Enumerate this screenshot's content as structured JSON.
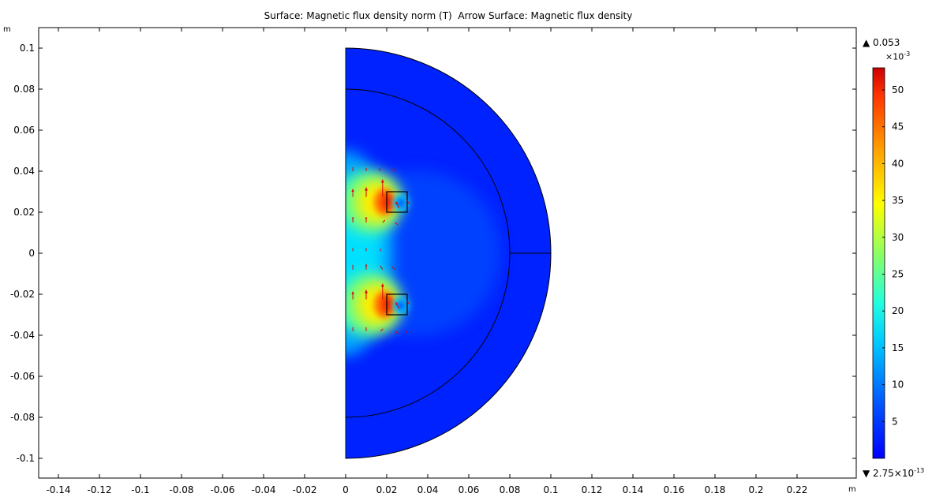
{
  "chart_data": {
    "type": "heatmap",
    "title": "Surface: Magnetic flux density norm (T)  Arrow Surface: Magnetic flux density",
    "x_unit": "m",
    "y_unit": "m",
    "xlim": [
      -0.15,
      0.2395
    ],
    "ylim": [
      -0.11,
      0.11
    ],
    "x_ticks": [
      "-0.14",
      "-0.12",
      "-0.1",
      "-0.08",
      "-0.06",
      "-0.04",
      "-0.02",
      "0",
      "0.02",
      "0.04",
      "0.06",
      "0.08",
      "0.1",
      "0.12",
      "0.14",
      "0.16",
      "0.18",
      "0.2",
      "0.22"
    ],
    "x_tick_values": [
      -0.14,
      -0.12,
      -0.1,
      -0.08,
      -0.06,
      -0.04,
      -0.02,
      0,
      0.02,
      0.04,
      0.06,
      0.08,
      0.1,
      0.12,
      0.14,
      0.16,
      0.18,
      0.2,
      0.22
    ],
    "y_ticks": [
      "0.1",
      "0.08",
      "0.06",
      "0.04",
      "0.02",
      "0",
      "-0.02",
      "-0.04",
      "-0.06",
      "-0.08",
      "-0.1"
    ],
    "y_tick_values": [
      0.1,
      0.08,
      0.06,
      0.04,
      0.02,
      0,
      -0.02,
      -0.04,
      -0.06,
      -0.08,
      -0.1
    ],
    "geometry": {
      "outer_radius": 0.1,
      "inner_radius": 0.08,
      "coils": [
        {
          "x_min": 0.02,
          "x_max": 0.03,
          "y_min": 0.02,
          "y_max": 0.03
        },
        {
          "x_min": 0.02,
          "x_max": 0.03,
          "y_min": -0.03,
          "y_max": -0.02
        }
      ]
    },
    "colorbar": {
      "max_label": "0.053",
      "multiplier": "×10",
      "multiplier_exp": "-3",
      "min_label": "2.75×10",
      "min_exp": "-13",
      "ticks": [
        "50",
        "45",
        "40",
        "35",
        "30",
        "25",
        "20",
        "15",
        "10",
        "5"
      ],
      "tick_values": [
        50,
        45,
        40,
        35,
        30,
        25,
        20,
        15,
        10,
        5
      ],
      "range": [
        0,
        53
      ]
    },
    "colors": {
      "background_field": "#0022ff",
      "arrow": "#dd0000",
      "boundary": "#000000"
    }
  }
}
